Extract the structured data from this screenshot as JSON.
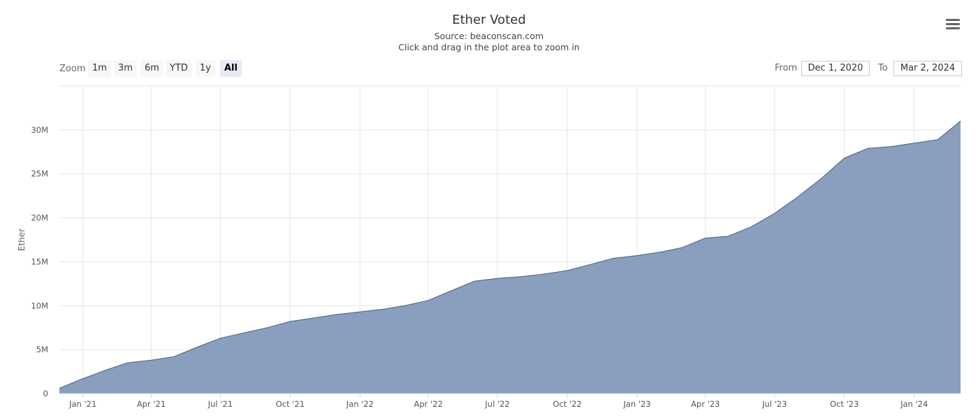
{
  "header": {
    "title": "Ether Voted",
    "subtitle_source": "Source: beaconscan.com",
    "subtitle_hint": "Click and drag in the plot area to zoom in"
  },
  "menu_icon": "hamburger-menu-icon",
  "range_selector": {
    "zoom_label": "Zoom",
    "buttons": [
      "1m",
      "3m",
      "6m",
      "YTD",
      "1y",
      "All"
    ],
    "selected": "All",
    "from_label": "From",
    "from_value": "Dec 1, 2020",
    "to_label": "To",
    "to_value": "Mar 2, 2024"
  },
  "colors": {
    "area_fill": "#8a9ebd",
    "area_line": "#4a5f85",
    "grid": "#e6e6e6"
  },
  "chart_data": {
    "type": "area",
    "title": "Ether Voted",
    "subtitle": "Source: beaconscan.com",
    "ylabel": "Ether",
    "xlabel": "",
    "ylim": [
      0,
      35000000
    ],
    "xlim": [
      "2020-12-01",
      "2024-03-02"
    ],
    "grid": true,
    "legend": "none",
    "y_ticks": [
      {
        "value": 0,
        "label": "0"
      },
      {
        "value": 5000000,
        "label": "5M"
      },
      {
        "value": 10000000,
        "label": "10M"
      },
      {
        "value": 15000000,
        "label": "15M"
      },
      {
        "value": 20000000,
        "label": "20M"
      },
      {
        "value": 25000000,
        "label": "25M"
      },
      {
        "value": 30000000,
        "label": "30M"
      }
    ],
    "x_ticks": [
      {
        "date": "2021-01-01",
        "label": "Jan '21"
      },
      {
        "date": "2021-04-01",
        "label": "Apr '21"
      },
      {
        "date": "2021-07-01",
        "label": "Jul '21"
      },
      {
        "date": "2021-10-01",
        "label": "Oct '21"
      },
      {
        "date": "2022-01-01",
        "label": "Jan '22"
      },
      {
        "date": "2022-04-01",
        "label": "Apr '22"
      },
      {
        "date": "2022-07-01",
        "label": "Jul '22"
      },
      {
        "date": "2022-10-01",
        "label": "Oct '22"
      },
      {
        "date": "2023-01-01",
        "label": "Jan '23"
      },
      {
        "date": "2023-04-01",
        "label": "Apr '23"
      },
      {
        "date": "2023-07-01",
        "label": "Jul '23"
      },
      {
        "date": "2023-10-01",
        "label": "Oct '23"
      },
      {
        "date": "2024-01-01",
        "label": "Jan '24"
      }
    ],
    "series": [
      {
        "points": [
          [
            "2020-12-01",
            600000
          ],
          [
            "2021-01-01",
            1700000
          ],
          [
            "2021-02-01",
            2700000
          ],
          [
            "2021-03-01",
            3500000
          ],
          [
            "2021-04-01",
            3800000
          ],
          [
            "2021-05-01",
            4200000
          ],
          [
            "2021-06-01",
            5300000
          ],
          [
            "2021-07-01",
            6300000
          ],
          [
            "2021-08-01",
            6900000
          ],
          [
            "2021-09-01",
            7500000
          ],
          [
            "2021-10-01",
            8200000
          ],
          [
            "2021-11-01",
            8600000
          ],
          [
            "2021-12-01",
            9000000
          ],
          [
            "2022-01-01",
            9300000
          ],
          [
            "2022-02-01",
            9600000
          ],
          [
            "2022-03-01",
            10000000
          ],
          [
            "2022-04-01",
            10600000
          ],
          [
            "2022-05-01",
            11700000
          ],
          [
            "2022-06-01",
            12800000
          ],
          [
            "2022-07-01",
            13100000
          ],
          [
            "2022-08-01",
            13300000
          ],
          [
            "2022-09-01",
            13600000
          ],
          [
            "2022-10-01",
            14000000
          ],
          [
            "2022-11-01",
            14700000
          ],
          [
            "2022-12-01",
            15400000
          ],
          [
            "2023-01-01",
            15700000
          ],
          [
            "2023-02-01",
            16100000
          ],
          [
            "2023-03-01",
            16600000
          ],
          [
            "2023-04-01",
            17700000
          ],
          [
            "2023-05-01",
            17900000
          ],
          [
            "2023-06-01",
            19000000
          ],
          [
            "2023-07-01",
            20500000
          ],
          [
            "2023-08-01",
            22400000
          ],
          [
            "2023-09-01",
            24500000
          ],
          [
            "2023-10-01",
            26800000
          ],
          [
            "2023-11-01",
            27900000
          ],
          [
            "2023-12-01",
            28100000
          ],
          [
            "2024-01-01",
            28500000
          ],
          [
            "2024-02-01",
            28900000
          ],
          [
            "2024-03-02",
            31000000
          ]
        ]
      }
    ]
  }
}
